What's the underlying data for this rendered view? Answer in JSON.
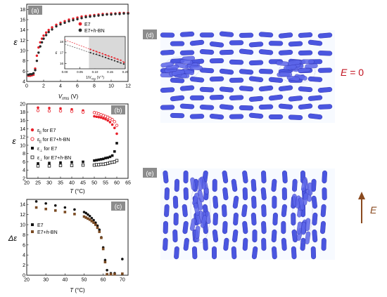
{
  "panels": {
    "a": {
      "letter": "(a)",
      "ylabel": "ε",
      "xlabel_main": "V",
      "xlabel_sub": "rms",
      "xlabel_unit": " (V)",
      "xticks": [
        "0",
        "2",
        "4",
        "6",
        "8",
        "10",
        "12"
      ],
      "yticks": [
        "4",
        "6",
        "8",
        "10",
        "12",
        "14",
        "16",
        "18"
      ],
      "legend": [
        {
          "text_pre": "E7",
          "color": "#e8202a"
        },
        {
          "text_pre": "E7+",
          "text_italic": "h",
          "text_post": "-BN",
          "color": "#2a2a2a"
        }
      ],
      "inset": {
        "ylabel": "ε",
        "xlabel": "1/V",
        "xlabel_sub": "rms",
        "xlabel_post": " (V",
        "xlabel_sup": "-1",
        "xlabel_close": ")",
        "xticks": [
          "0.00",
          "0.05",
          "0.10",
          "0.15",
          "0.20"
        ],
        "yticks": [
          "16",
          "17",
          "18"
        ]
      }
    },
    "b": {
      "letter": "(b)",
      "ylabel": "ε",
      "xlabel": "T",
      "xlabel_unit": " (°C)",
      "xticks": [
        "20",
        "25",
        "30",
        "35",
        "40",
        "45",
        "50",
        "55",
        "60",
        "65"
      ],
      "yticks": [
        "2",
        "4",
        "6",
        "8",
        "10",
        "12",
        "14",
        "16",
        "18",
        "20"
      ],
      "legend": [
        {
          "sym": "ε",
          "sub": "||",
          "text": " for E7",
          "marker": "filled-circle",
          "color": "#e8202a"
        },
        {
          "sym": "ε",
          "sub": "||",
          "text": " for E7+",
          "italic": "h",
          "post": "-BN",
          "marker": "open-circle",
          "color": "#e8202a"
        },
        {
          "sym": "ε",
          "sub": "⊥",
          "text": " for E7",
          "marker": "filled-square",
          "color": "#111111"
        },
        {
          "sym": "ε",
          "sub": "⊥",
          "text": " for E7+",
          "italic": "h",
          "post": "-BN",
          "marker": "open-square",
          "color": "#111111"
        }
      ]
    },
    "c": {
      "letter": "(c)",
      "ylabel": "Δε",
      "xlabel": "T",
      "xlabel_unit": " (°C)",
      "xticks": [
        "20",
        "30",
        "40",
        "50",
        "60",
        "70"
      ],
      "yticks": [
        "0",
        "2",
        "4",
        "6",
        "8",
        "10",
        "12",
        "14"
      ],
      "legend": [
        {
          "text": "E7",
          "color": "#111111"
        },
        {
          "text_pre": "E7+",
          "text_italic": "h",
          "text_post": "-BN",
          "color": "#7a4a22"
        }
      ]
    },
    "d": {
      "letter": "(d)",
      "label_italic": "E",
      "label_post": " = 0"
    },
    "e": {
      "letter": "(e)",
      "label_italic": "E"
    }
  },
  "chart_data": [
    {
      "id": "a",
      "type": "scatter",
      "xlabel": "Vrms (V)",
      "ylabel": "ε",
      "xlim": [
        0,
        12
      ],
      "ylim": [
        4,
        19
      ],
      "series": [
        {
          "name": "E7",
          "color": "#e8202a",
          "x": [
            0.2,
            0.4,
            0.6,
            0.8,
            1.0,
            1.2,
            1.4,
            1.6,
            1.8,
            2.0,
            2.3,
            2.6,
            3.0,
            3.5,
            4.0,
            4.5,
            5.0,
            5.5,
            6.0,
            6.5,
            7.0,
            7.5,
            8.0,
            8.5,
            9.0,
            9.5,
            10.0,
            10.5,
            11.0,
            11.5,
            12.0
          ],
          "y": [
            5.1,
            5.1,
            5.2,
            5.3,
            6.5,
            9.0,
            10.6,
            11.6,
            12.3,
            12.9,
            13.5,
            14.0,
            14.5,
            15.0,
            15.4,
            15.7,
            16.0,
            16.2,
            16.4,
            16.6,
            16.7,
            16.8,
            16.9,
            17.0,
            17.1,
            17.1,
            17.2,
            17.2,
            17.3,
            17.3,
            17.3
          ]
        },
        {
          "name": "E7+h-BN",
          "color": "#2a2a2a",
          "x": [
            0.2,
            0.4,
            0.6,
            0.8,
            1.0,
            1.2,
            1.4,
            1.6,
            1.8,
            2.0,
            2.3,
            2.6,
            3.0,
            3.5,
            4.0,
            4.5,
            5.0,
            5.5,
            6.0,
            6.5,
            7.0,
            7.5,
            8.0,
            8.5,
            9.0,
            9.5,
            10.0,
            10.5,
            11.0,
            11.5,
            12.0
          ],
          "y": [
            5.3,
            5.4,
            5.4,
            5.6,
            6.2,
            8.0,
            9.6,
            10.8,
            11.6,
            12.3,
            13.0,
            13.6,
            14.1,
            14.7,
            15.1,
            15.4,
            15.7,
            15.9,
            16.1,
            16.3,
            16.5,
            16.6,
            16.7,
            16.8,
            16.9,
            17.0,
            17.0,
            17.1,
            17.1,
            17.2,
            17.2
          ]
        }
      ],
      "inset": {
        "xlim": [
          0,
          0.2
        ],
        "ylim": [
          15.5,
          18.5
        ],
        "series": [
          {
            "name": "E7",
            "color": "#e8202a",
            "x": [
              0.085,
              0.095,
              0.105,
              0.115,
              0.125,
              0.135,
              0.145,
              0.155,
              0.165,
              0.175,
              0.185,
              0.195
            ],
            "y": [
              17.3,
              17.2,
              17.1,
              17.0,
              16.9,
              16.8,
              16.7,
              16.6,
              16.5,
              16.4,
              16.3,
              16.1
            ]
          },
          {
            "name": "E7+h-BN",
            "color": "#2a2a2a",
            "x": [
              0.085,
              0.095,
              0.105,
              0.115,
              0.125,
              0.135,
              0.145,
              0.155,
              0.165,
              0.175,
              0.185,
              0.195
            ],
            "y": [
              17.0,
              16.9,
              16.85,
              16.75,
              16.65,
              16.55,
              16.45,
              16.35,
              16.25,
              16.15,
              16.05,
              15.95
            ]
          }
        ],
        "fits": [
          {
            "color": "#e8202a",
            "x": [
              0,
              0.2
            ],
            "y": [
              18.2,
              16.1
            ]
          },
          {
            "color": "#555555",
            "x": [
              0,
              0.2
            ],
            "y": [
              17.8,
              15.9
            ]
          }
        ]
      }
    },
    {
      "id": "b",
      "type": "scatter",
      "xlabel": "T (°C)",
      "ylabel": "ε",
      "xlim": [
        20,
        65
      ],
      "ylim": [
        2,
        20
      ],
      "series": [
        {
          "name": "ε|| for E7",
          "marker": "filled-circle",
          "color": "#e8202a",
          "x": [
            25,
            30,
            35,
            40,
            45,
            50,
            51,
            52,
            53,
            54,
            55,
            56,
            57,
            58,
            59,
            60
          ],
          "y": [
            19.1,
            19.0,
            18.9,
            18.7,
            18.4,
            17.0,
            16.9,
            16.8,
            16.7,
            16.5,
            16.3,
            16.0,
            15.6,
            15.0,
            14.2,
            12.8
          ]
        },
        {
          "name": "ε|| for E7+h-BN",
          "marker": "open-circle",
          "color": "#e8202a",
          "x": [
            25,
            30,
            35,
            40,
            45,
            50,
            51,
            52,
            53,
            54,
            55,
            56,
            57,
            58,
            59,
            60
          ],
          "y": [
            18.4,
            18.3,
            18.3,
            18.2,
            18.0,
            17.9,
            17.8,
            17.6,
            17.4,
            17.2,
            17.0,
            16.8,
            16.5,
            16.2,
            15.7,
            14.8
          ]
        },
        {
          "name": "ε⊥ for E7",
          "marker": "filled-square",
          "color": "#111111",
          "x": [
            25,
            30,
            35,
            40,
            45,
            50,
            51,
            52,
            53,
            54,
            55,
            56,
            57,
            58,
            59,
            60
          ],
          "y": [
            5.6,
            5.7,
            5.8,
            5.9,
            6.0,
            6.3,
            6.4,
            6.5,
            6.6,
            6.7,
            6.9,
            7.0,
            7.2,
            7.5,
            8.5,
            10.5
          ]
        },
        {
          "name": "ε⊥ for E7+h-BN",
          "marker": "open-square",
          "color": "#111111",
          "x": [
            25,
            30,
            35,
            40,
            45,
            50,
            51,
            52,
            53,
            54,
            55,
            56,
            57,
            58,
            59,
            60
          ],
          "y": [
            5.0,
            5.0,
            5.1,
            5.1,
            5.2,
            5.2,
            5.3,
            5.3,
            5.4,
            5.4,
            5.5,
            5.6,
            5.8,
            5.9,
            6.0,
            6.3
          ]
        }
      ]
    },
    {
      "id": "c",
      "type": "scatter",
      "xlabel": "T (°C)",
      "ylabel": "Δε",
      "xlim": [
        20,
        73
      ],
      "ylim": [
        0,
        15
      ],
      "series": [
        {
          "name": "E7",
          "marker": "filled-circle",
          "color": "#111111",
          "x": [
            25,
            30,
            35,
            40,
            45,
            50,
            51,
            52,
            53,
            54,
            55,
            56,
            57,
            58,
            59,
            60,
            61,
            62,
            64,
            66,
            70
          ],
          "y": [
            14.6,
            14.2,
            13.8,
            13.4,
            13.0,
            12.5,
            12.3,
            12.0,
            11.7,
            11.3,
            10.9,
            10.4,
            9.8,
            9.0,
            7.5,
            5.5,
            3.0,
            1.0,
            0.4,
            0.4,
            3.2
          ]
        },
        {
          "name": "E7+h-BN",
          "marker": "filled-square",
          "color": "#7a4a22",
          "x": [
            25,
            30,
            35,
            40,
            45,
            50,
            51,
            52,
            53,
            54,
            55,
            56,
            57,
            58,
            59,
            60,
            61,
            62,
            64,
            66,
            70
          ],
          "y": [
            13.4,
            13.1,
            12.8,
            12.5,
            12.1,
            11.6,
            11.4,
            11.2,
            11.0,
            10.7,
            10.4,
            10.0,
            9.4,
            8.6,
            7.4,
            5.2,
            2.6,
            0.2,
            0.2,
            0.2,
            0.3
          ]
        }
      ]
    }
  ]
}
